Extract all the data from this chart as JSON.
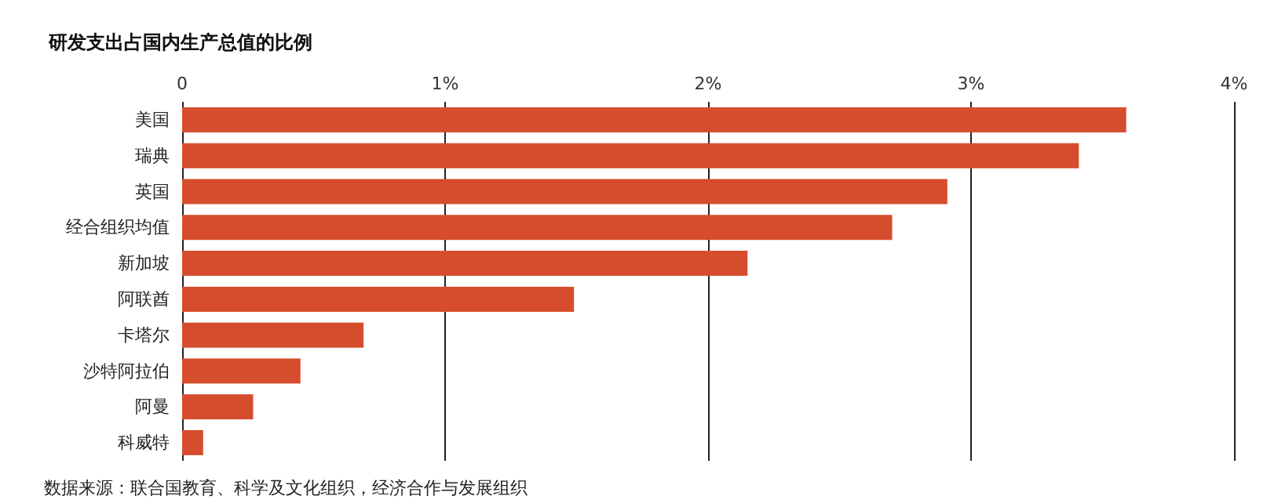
{
  "chart_data": {
    "type": "bar",
    "orientation": "horizontal",
    "title": "研发支出占国内生产总值的比例",
    "categories": [
      "美国",
      "瑞典",
      "英国",
      "经合组织均值",
      "新加坡",
      "阿联酋",
      "卡塔尔",
      "沙特阿拉伯",
      "阿曼",
      "科威特"
    ],
    "values": [
      3.59,
      3.41,
      2.91,
      2.7,
      2.15,
      1.49,
      0.69,
      0.45,
      0.27,
      0.08
    ],
    "color": "#d64d2e",
    "xlim": [
      0,
      4
    ],
    "xticks": [
      0,
      {
        "value": 1,
        "label": "1%"
      },
      {
        "value": 2,
        "label": "2%"
      },
      {
        "value": 3,
        "label": "3%"
      },
      {
        "value": 4,
        "label": "4%"
      }
    ],
    "grid": "x",
    "annotations": [
      "数据来源：联合国教育、科学及文化组织，经济合作与发展组织"
    ]
  }
}
